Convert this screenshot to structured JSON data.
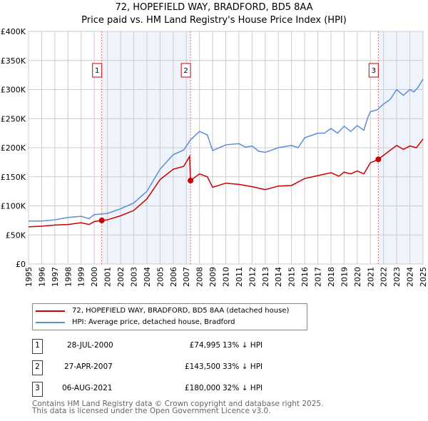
{
  "chart_data": {
    "type": "line",
    "title": "72, HOPEFIELD WAY, BRADFORD, BD5 8AA",
    "subtitle": "Price paid vs. HM Land Registry's House Price Index (HPI)",
    "ylim": [
      0,
      400000
    ],
    "xlim": [
      1995,
      2025
    ],
    "yticks": [
      {
        "v": 0,
        "l": "£0"
      },
      {
        "v": 50000,
        "l": "£50K"
      },
      {
        "v": 100000,
        "l": "£100K"
      },
      {
        "v": 150000,
        "l": "£150K"
      },
      {
        "v": 200000,
        "l": "£200K"
      },
      {
        "v": 250000,
        "l": "£250K"
      },
      {
        "v": 300000,
        "l": "£300K"
      },
      {
        "v": 350000,
        "l": "£350K"
      },
      {
        "v": 400000,
        "l": "£400K"
      }
    ],
    "xticks": [
      "1995",
      "1996",
      "1997",
      "1998",
      "1999",
      "2000",
      "2001",
      "2002",
      "2003",
      "2004",
      "2005",
      "2006",
      "2007",
      "2008",
      "2009",
      "2010",
      "2011",
      "2012",
      "2013",
      "2014",
      "2015",
      "2016",
      "2017",
      "2018",
      "2019",
      "2020",
      "2021",
      "2022",
      "2023",
      "2024",
      "2025"
    ],
    "series": [
      {
        "name": "72, HOPEFIELD WAY, BRADFORD, BD5 8AA (detached house)",
        "color": "#cc0000",
        "x": [
          1995,
          1996,
          1997,
          1998,
          1999,
          1999.6,
          2000,
          2000.57,
          2001,
          2002,
          2003,
          2004,
          2005,
          2006,
          2006.8,
          2007.25,
          2007.32,
          2008,
          2008.6,
          2009,
          2010,
          2011,
          2012,
          2013,
          2014,
          2015,
          2016,
          2017,
          2018,
          2018.6,
          2019,
          2019.5,
          2020,
          2020.5,
          2021,
          2021.6,
          2022,
          2023,
          2023.5,
          2024,
          2024.5,
          2025
        ],
        "y": [
          64000,
          65000,
          67000,
          68000,
          71000,
          68000,
          73000,
          74995,
          76000,
          83000,
          92000,
          112000,
          145000,
          163000,
          168000,
          185000,
          143500,
          155000,
          150000,
          132000,
          139000,
          137000,
          133000,
          128000,
          134000,
          135000,
          147000,
          152000,
          157000,
          151000,
          158000,
          155000,
          160000,
          155000,
          174000,
          180000,
          187000,
          204000,
          197000,
          203000,
          200000,
          215000
        ]
      },
      {
        "name": "HPI: Average price, detached house, Bradford",
        "color": "#5b8ed6",
        "x": [
          1995,
          1996,
          1997,
          1998,
          1999,
          1999.6,
          2000,
          2001,
          2002,
          2003,
          2004,
          2005,
          2006,
          2006.8,
          2007.3,
          2008,
          2008.6,
          2009,
          2010,
          2011,
          2011.5,
          2012,
          2012.5,
          2013,
          2014,
          2015,
          2015.5,
          2016,
          2017,
          2017.5,
          2018,
          2018.5,
          2019,
          2019.5,
          2020,
          2020.5,
          2020.8,
          2021,
          2021.5,
          2022,
          2022.5,
          2023,
          2023.5,
          2024,
          2024.3,
          2024.6,
          2025
        ],
        "y": [
          74000,
          74000,
          76000,
          80000,
          82000,
          78000,
          85000,
          87000,
          95000,
          105000,
          125000,
          163000,
          188000,
          196000,
          213000,
          228000,
          222000,
          195000,
          205000,
          207000,
          201000,
          203000,
          194000,
          192000,
          200000,
          204000,
          200000,
          217000,
          225000,
          225000,
          233000,
          225000,
          237000,
          228000,
          238000,
          230000,
          252000,
          262000,
          265000,
          275000,
          283000,
          300000,
          290000,
          300000,
          296000,
          303000,
          318000
        ]
      }
    ],
    "sales": [
      {
        "n": "1",
        "x": 2000.57,
        "y": 74995,
        "date": "28-JUL-2000",
        "price": "£74,995",
        "hpi": "13% ↓ HPI"
      },
      {
        "n": "2",
        "x": 2007.32,
        "y": 143500,
        "date": "27-APR-2007",
        "price": "£143,500",
        "hpi": "33% ↓ HPI"
      },
      {
        "n": "3",
        "x": 2021.6,
        "y": 180000,
        "date": "06-AUG-2021",
        "price": "£180,000",
        "hpi": "32% ↓ HPI"
      }
    ],
    "shaded": [
      [
        2000.57,
        2007.32
      ],
      [
        2021.6,
        2025
      ]
    ]
  },
  "footer": [
    "Contains HM Land Registry data © Crown copyright and database right 2025.",
    "This data is licensed under the Open Government Licence v3.0."
  ]
}
